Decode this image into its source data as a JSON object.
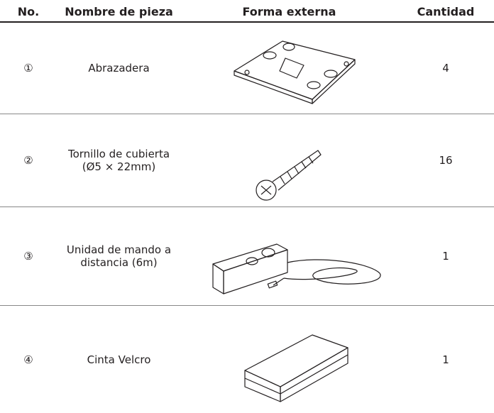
{
  "header": {
    "columns": [
      "No.",
      "Nombre de pieza",
      "Forma externa",
      "Cantidad"
    ]
  },
  "table": {
    "rows": [
      {
        "number": "①",
        "name": [
          "Abrazadera"
        ],
        "quantity": 4
      },
      {
        "number": "②",
        "name": [
          "Tornillo de cubierta",
          "(Ø5 × 22mm)"
        ],
        "quantity": 16
      },
      {
        "number": "③",
        "name": [
          "Unidad de mando a",
          "distancia (6m)"
        ],
        "quantity": 1
      },
      {
        "number": "④",
        "name": [
          "Cinta Velcro"
        ],
        "quantity": 1
      }
    ]
  }
}
